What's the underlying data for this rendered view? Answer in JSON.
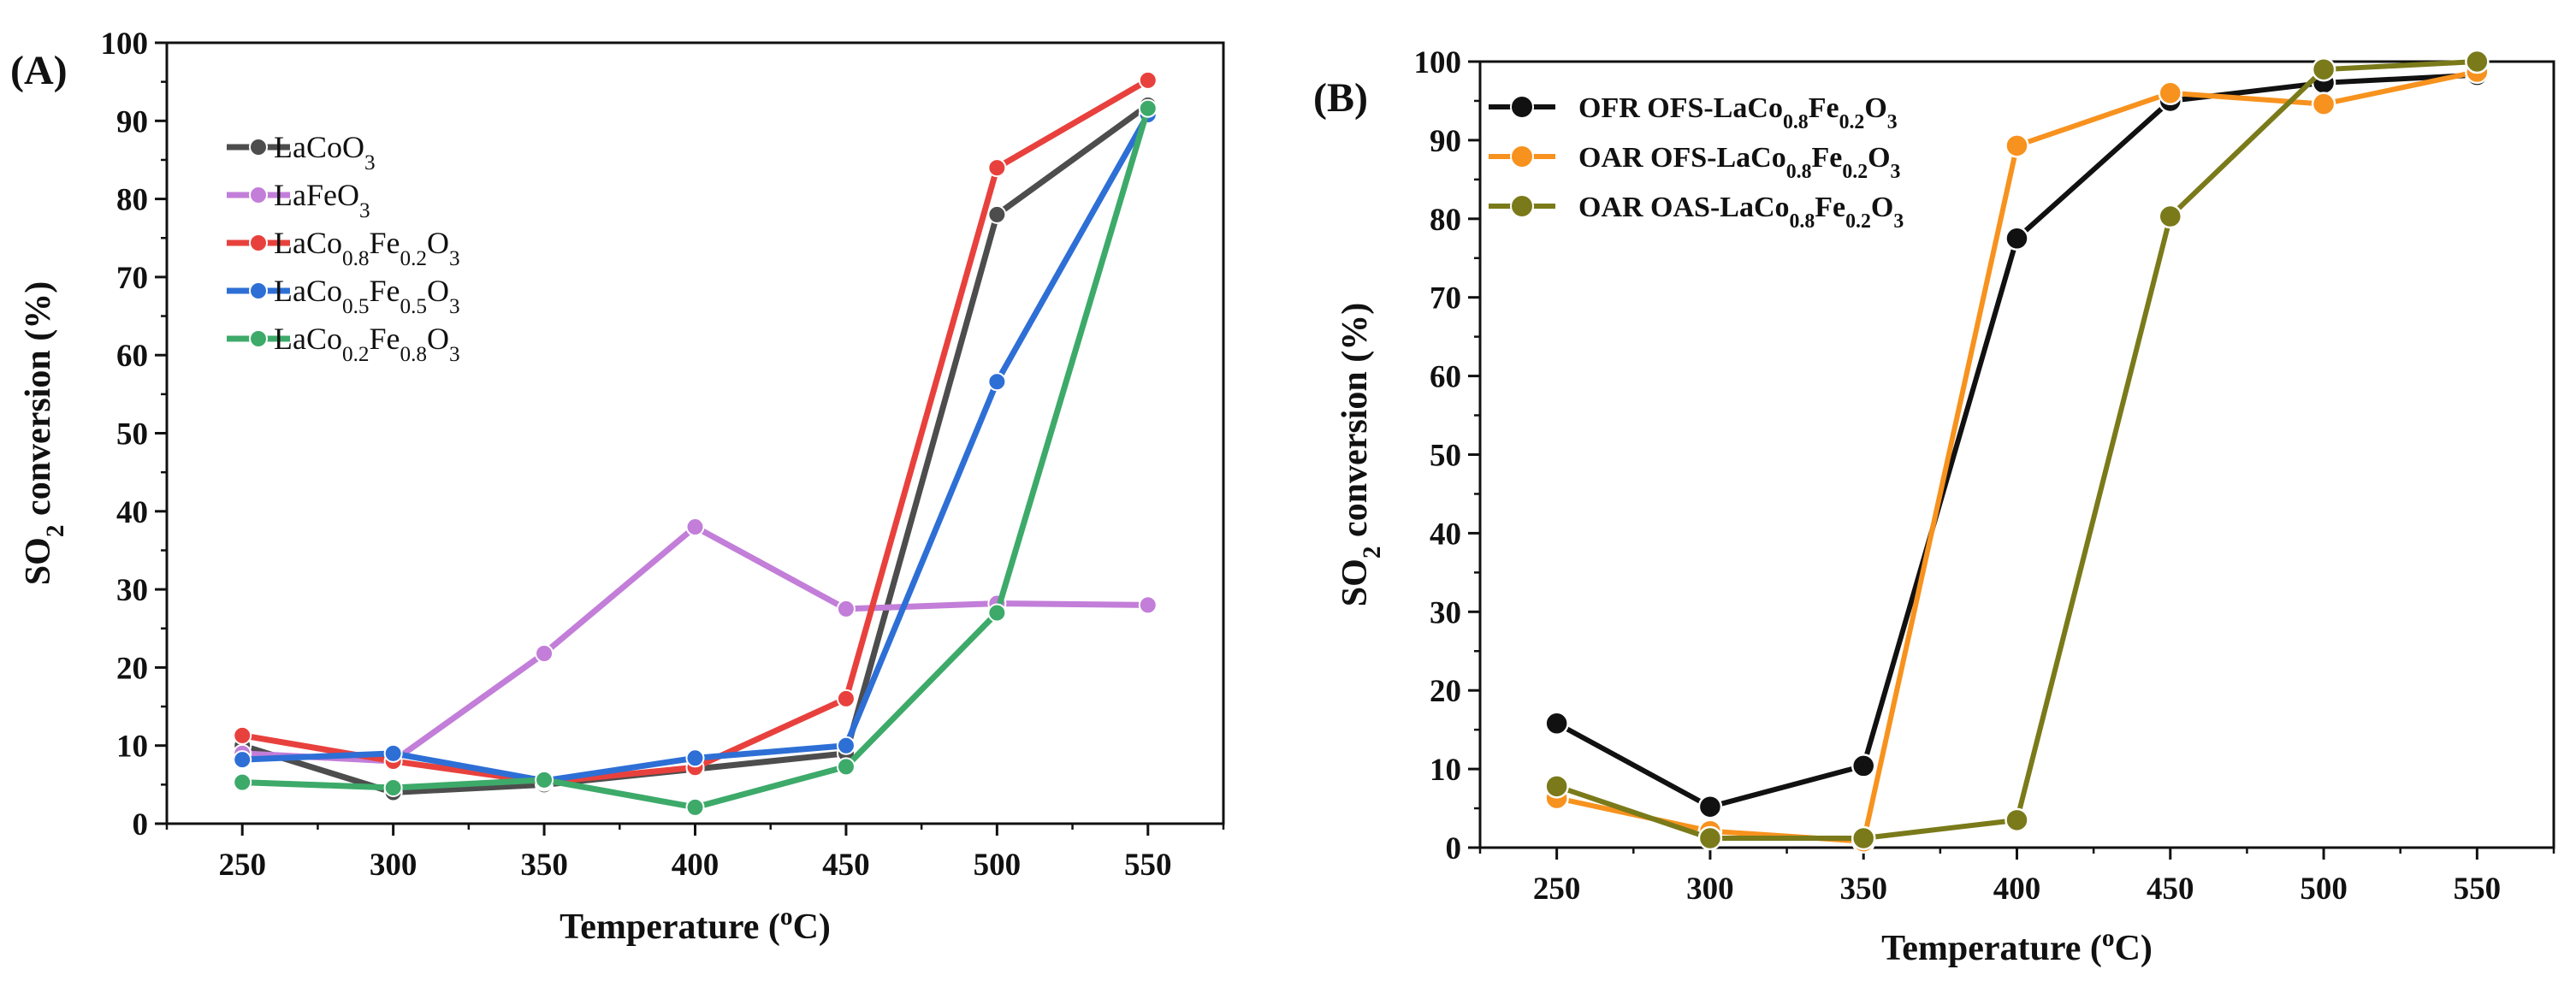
{
  "chart_data": [
    {
      "type": "line",
      "panel_label": "(A)",
      "xlabel": {
        "main": "Temperature (",
        "sup": "o",
        "tail": "C)"
      },
      "ylabel": {
        "pre": "SO",
        "sub": "2",
        "post": " conversion (%)"
      },
      "x": [
        250,
        300,
        350,
        400,
        450,
        500,
        550
      ],
      "xlim": [
        225,
        575
      ],
      "ylim": [
        0,
        100
      ],
      "xticks": [
        "250",
        "300",
        "350",
        "400",
        "450",
        "500",
        "550"
      ],
      "yticks": [
        "0",
        "10",
        "20",
        "30",
        "40",
        "50",
        "60",
        "70",
        "80",
        "90",
        "100"
      ],
      "legend_position": "upper-left",
      "series": [
        {
          "name": "LaCoO3",
          "parts": [
            [
              "LaCoO",
              ""
            ],
            [
              "3",
              "sub"
            ]
          ],
          "color": "#4d4d4d",
          "values": [
            10,
            4,
            5,
            7,
            9,
            78,
            92
          ]
        },
        {
          "name": "LaFeO3",
          "parts": [
            [
              "LaFeO",
              ""
            ],
            [
              "3",
              "sub"
            ]
          ],
          "color": "#c27ed8",
          "values": [
            9,
            8,
            21.8,
            38,
            27.5,
            28.2,
            28
          ]
        },
        {
          "name": "LaCo0.8Fe0.2O3",
          "parts": [
            [
              "LaCo",
              ""
            ],
            [
              "0.8",
              "sub"
            ],
            [
              "Fe",
              ""
            ],
            [
              "0.2",
              "sub"
            ],
            [
              "O",
              ""
            ],
            [
              "3",
              "sub"
            ]
          ],
          "color": "#e8413d",
          "values": [
            11.3,
            8,
            5.3,
            7.2,
            16,
            84,
            95.2
          ]
        },
        {
          "name": "LaCo0.5Fe0.5O3",
          "parts": [
            [
              "LaCo",
              ""
            ],
            [
              "0.5",
              "sub"
            ],
            [
              "Fe",
              ""
            ],
            [
              "0.5",
              "sub"
            ],
            [
              "O",
              ""
            ],
            [
              "3",
              "sub"
            ]
          ],
          "color": "#2e6fd6",
          "values": [
            8.2,
            9,
            5.5,
            8.4,
            10,
            56.6,
            90.8
          ]
        },
        {
          "name": "LaCo0.2Fe0.8O3",
          "parts": [
            [
              "LaCo",
              ""
            ],
            [
              "0.2",
              "sub"
            ],
            [
              "Fe",
              ""
            ],
            [
              "0.8",
              "sub"
            ],
            [
              "O",
              ""
            ],
            [
              "3",
              "sub"
            ]
          ],
          "color": "#3daa6a",
          "values": [
            5.3,
            4.6,
            5.6,
            2.1,
            7.3,
            27,
            91.6
          ]
        }
      ]
    },
    {
      "type": "line",
      "panel_label": "(B)",
      "xlabel": {
        "main": "Temperature (",
        "sup": "o",
        "tail": "C)"
      },
      "ylabel": {
        "pre": "SO",
        "sub": "2",
        "post": " conversion (%)"
      },
      "x": [
        250,
        300,
        350,
        400,
        450,
        500,
        550
      ],
      "xlim": [
        225,
        575
      ],
      "ylim": [
        0,
        100
      ],
      "xticks": [
        "250",
        "300",
        "350",
        "400",
        "450",
        "500",
        "550"
      ],
      "yticks": [
        "0",
        "10",
        "20",
        "30",
        "40",
        "50",
        "60",
        "70",
        "80",
        "90",
        "100"
      ],
      "legend_position": "upper-left",
      "series": [
        {
          "name": "OFR OFS-LaCo0.8Fe0.2O3",
          "parts": [
            [
              "OFR OFS-LaCo",
              ""
            ],
            [
              "0.8",
              "sub"
            ],
            [
              "Fe",
              ""
            ],
            [
              "0.2",
              "sub"
            ],
            [
              "O",
              ""
            ],
            [
              "3",
              "sub"
            ]
          ],
          "color": "#111111",
          "values": [
            15.8,
            5.2,
            10.4,
            77.5,
            95,
            97.3,
            98.3
          ]
        },
        {
          "name": "OAR OFS-LaCo0.8Fe0.2O3",
          "parts": [
            [
              "OAR OFS-LaCo",
              ""
            ],
            [
              "0.8",
              "sub"
            ],
            [
              "Fe",
              ""
            ],
            [
              "0.2",
              "sub"
            ],
            [
              "O",
              ""
            ],
            [
              "3",
              "sub"
            ]
          ],
          "color": "#f7921e",
          "values": [
            6.3,
            2.1,
            0.8,
            89.3,
            96,
            94.6,
            98.7
          ]
        },
        {
          "name": "OAR OAS-LaCo0.8Fe0.2O3",
          "parts": [
            [
              "OAR OAS-LaCo",
              ""
            ],
            [
              "0.8",
              "sub"
            ],
            [
              "Fe",
              ""
            ],
            [
              "0.2",
              "sub"
            ],
            [
              "O",
              ""
            ],
            [
              "3",
              "sub"
            ]
          ],
          "color": "#7a7a1a",
          "values": [
            7.8,
            1.2,
            1.2,
            3.5,
            80.3,
            99,
            100
          ]
        }
      ]
    }
  ]
}
